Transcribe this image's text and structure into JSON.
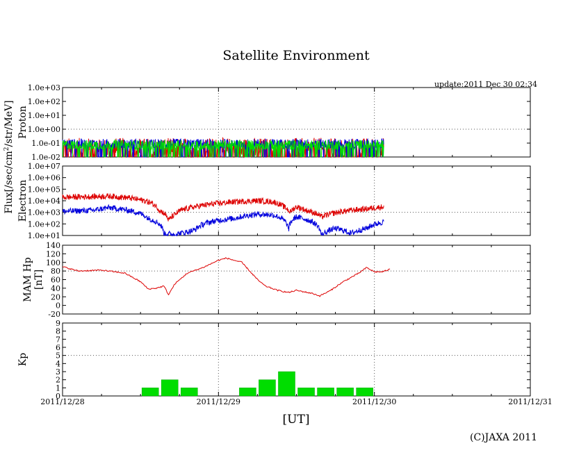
{
  "title": "Satellite Environment",
  "update": "update:2011 Dec 30 02:34",
  "copyright": "(C)JAXA 2011",
  "flux_label_left": "Flux[/sec/cm",
  "flux_label_sup": "2",
  "flux_label_right": "/str/MeV]",
  "colors": {
    "red": "#dd0000",
    "blue": "#0000dd",
    "green": "#00dd00",
    "grid": "#555555"
  },
  "chart_data": {
    "type": "line",
    "x_axis": {
      "xlabel": "[UT]",
      "range_days": [
        0,
        3
      ],
      "tick_labels": [
        "2011/12/28",
        "2011/12/29",
        "2011/12/30",
        "2011/12/31"
      ],
      "data_end_day": 2.06
    },
    "panels": [
      {
        "name": "proton",
        "ylabel": "Proton",
        "scale": "log",
        "ylim": [
          0.01,
          1000
        ],
        "tick_labels": [
          "1.0e-02",
          "1.0e-01",
          "1.0e+00",
          "1.0e+01",
          "1.0e+02",
          "1.0e+03"
        ],
        "series": [
          {
            "name": "red",
            "color": "red",
            "t": [
              0,
              2.06
            ],
            "values": [
              0.03,
              0.03
            ]
          },
          {
            "name": "blue",
            "color": "blue",
            "t": [
              0,
              2.06
            ],
            "values": [
              0.09,
              0.09
            ]
          },
          {
            "name": "green",
            "color": "green",
            "t": [
              0,
              2.06
            ],
            "values": [
              0.075,
              0.075
            ]
          }
        ]
      },
      {
        "name": "electron",
        "ylabel": "Electron",
        "scale": "log",
        "ylim": [
          10,
          10000000
        ],
        "tick_labels": [
          "1.0e+01",
          "1.0e+02",
          "1.0e+03",
          "1.0e+04",
          "1.0e+05",
          "1.0e+06",
          "1.0e+07"
        ],
        "series": [
          {
            "name": "red",
            "color": "red",
            "t": [
              0,
              0.15,
              0.3,
              0.42,
              0.55,
              0.62,
              0.68,
              0.72,
              0.76,
              0.82,
              0.95,
              1.1,
              1.25,
              1.35,
              1.42,
              1.46,
              1.5,
              1.56,
              1.66,
              1.75,
              1.85,
              1.95,
              2.06
            ],
            "values": [
              20000,
              22000,
              25000,
              18000,
              8000,
              1500,
              200,
              600,
              1500,
              2500,
              5000,
              8000,
              10000,
              8000,
              3000,
              1000,
              3000,
              1500,
              400,
              900,
              1500,
              2000,
              3000
            ]
          },
          {
            "name": "blue",
            "color": "blue",
            "t": [
              0,
              0.2,
              0.3,
              0.42,
              0.55,
              0.65,
              0.72,
              0.8,
              0.85,
              0.95,
              1.1,
              1.25,
              1.35,
              1.42,
              1.45,
              1.5,
              1.58,
              1.66,
              1.75,
              1.85,
              1.95,
              2.06
            ],
            "values": [
              1200,
              1500,
              2500,
              1500,
              300,
              15,
              12,
              20,
              30,
              150,
              300,
              700,
              600,
              200,
              30,
              400,
              200,
              10,
              40,
              15,
              40,
              150
            ]
          }
        ]
      },
      {
        "name": "mam_hp",
        "ylabel": "MAM Hp",
        "ylabel2": "[nT]",
        "scale": "linear",
        "ylim": [
          -20,
          140
        ],
        "tick_labels": [
          "-20",
          "0",
          "20",
          "40",
          "60",
          "80",
          "100",
          "120",
          "140"
        ],
        "series": [
          {
            "name": "Hp",
            "color": "red",
            "t": [
              0,
              0.1,
              0.25,
              0.4,
              0.5,
              0.55,
              0.6,
              0.65,
              0.68,
              0.72,
              0.8,
              0.9,
              1.0,
              1.05,
              1.15,
              1.25,
              1.3,
              1.38,
              1.45,
              1.5,
              1.6,
              1.65,
              1.72,
              1.8,
              1.9,
              1.95,
              2.0,
              2.05,
              2.1
            ],
            "values": [
              90,
              80,
              82,
              75,
              55,
              38,
              40,
              45,
              25,
              50,
              75,
              88,
              105,
              110,
              100,
              60,
              45,
              35,
              30,
              35,
              28,
              22,
              35,
              55,
              75,
              88,
              78,
              78,
              84
            ]
          }
        ]
      },
      {
        "name": "kp",
        "ylabel": "Kp",
        "scale": "linear",
        "ylim": [
          0,
          9
        ],
        "tick_labels": [
          "0",
          "1",
          "2",
          "3",
          "4",
          "5",
          "6",
          "7",
          "8",
          "9"
        ],
        "bar_color": "green",
        "bars": {
          "t_start": [
            0.5,
            0.625,
            0.75,
            1.125,
            1.25,
            1.375,
            1.5,
            1.625,
            1.75,
            1.875
          ],
          "values": [
            1,
            2,
            1,
            1,
            2,
            3,
            1,
            1,
            1,
            1
          ]
        }
      }
    ]
  }
}
